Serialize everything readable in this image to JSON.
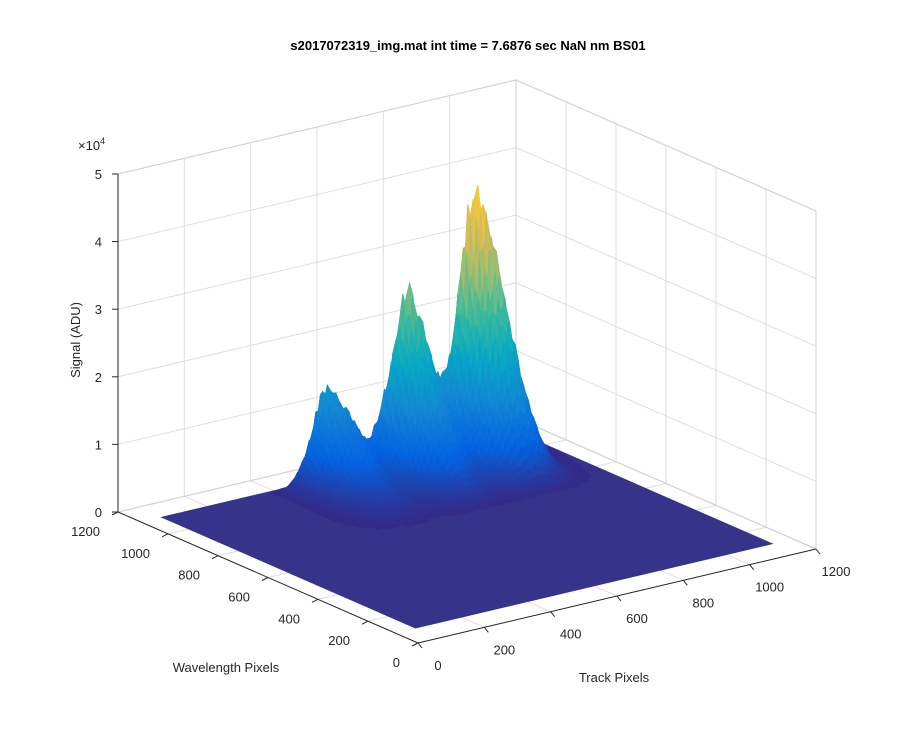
{
  "chart_data": {
    "type": "surface",
    "title": "s2017072319_img.mat int time = 7.6876 sec  NaN nm BS01",
    "xlabel": "Track Pixels",
    "ylabel": "Wavelength Pixels",
    "zlabel": "Signal (ADU)",
    "z_exponent_label": "×10",
    "z_exponent": "4",
    "xlim": [
      0,
      1200
    ],
    "ylim": [
      0,
      1200
    ],
    "zlim": [
      0,
      50000
    ],
    "x_ticks": [
      "0",
      "200",
      "400",
      "600",
      "800",
      "1000",
      "1200"
    ],
    "y_ticks": [
      "0",
      "200",
      "400",
      "600",
      "800",
      "1000",
      "1200"
    ],
    "z_ticks": [
      "0",
      "1",
      "2",
      "3",
      "4",
      "5"
    ],
    "grid": true,
    "colormap": [
      "#352a87",
      "#0363e1",
      "#1485d4",
      "#06a7c6",
      "#38b99e",
      "#92bf73",
      "#d9ba56",
      "#fcce2e",
      "#f9fb0e"
    ],
    "base_color": "#35348a",
    "surface_extent": {
      "x": [
        60,
        1140
      ],
      "y": [
        90,
        1110
      ]
    },
    "peaks": [
      {
        "x_center": 920,
        "x_width": 95,
        "y_start": 700,
        "y_end": 1050,
        "y_peak": 980,
        "peak_signal": 46000
      },
      {
        "x_center": 720,
        "x_width": 90,
        "y_start": 700,
        "y_end": 1050,
        "y_peak": 1000,
        "peak_signal": 30000
      },
      {
        "x_center": 530,
        "x_width": 85,
        "y_start": 700,
        "y_end": 1100,
        "y_peak": 1060,
        "peak_signal": 16000
      }
    ]
  }
}
